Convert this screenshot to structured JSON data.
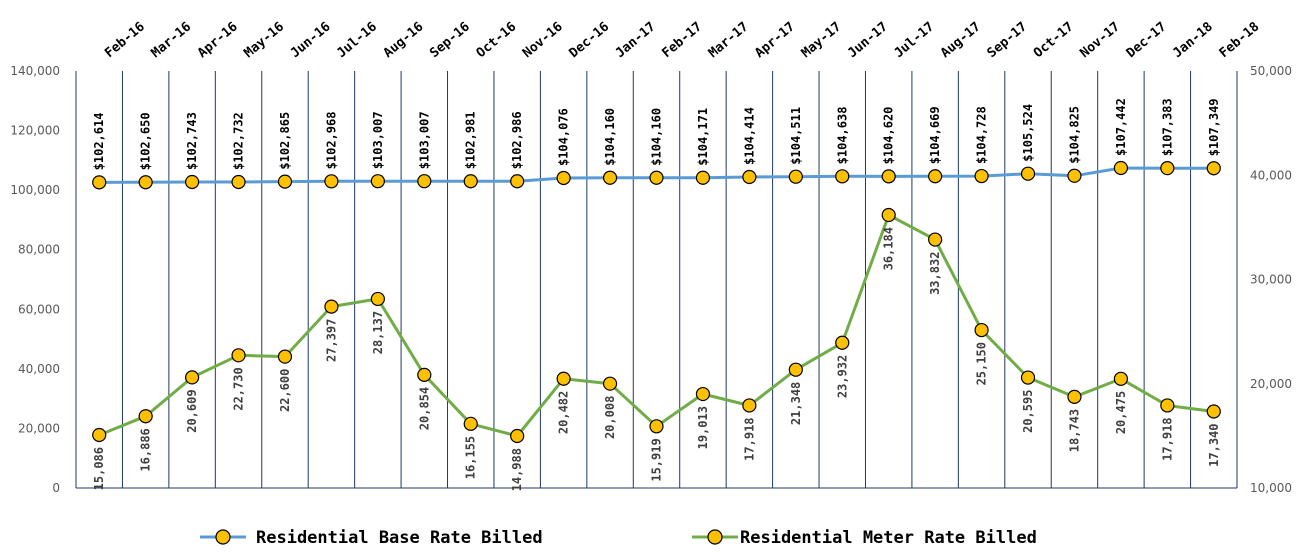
{
  "chart_data": {
    "type": "line",
    "categories": [
      "Feb-16",
      "Mar-16",
      "Apr-16",
      "May-16",
      "Jun-16",
      "Jul-16",
      "Aug-16",
      "Sep-16",
      "Oct-16",
      "Nov-16",
      "Dec-16",
      "Jan-17",
      "Feb-17",
      "Mar-17",
      "Apr-17",
      "May-17",
      "Jun-17",
      "Jul-17",
      "Aug-17",
      "Sep-17",
      "Oct-17",
      "Nov-17",
      "Dec-17",
      "Jan-18",
      "Feb-18"
    ],
    "y_left": {
      "min": 0,
      "max": 140000,
      "ticks": [
        "0",
        "20,000",
        "40,000",
        "60,000",
        "80,000",
        "100,000",
        "120,000",
        "140,000"
      ]
    },
    "y_right": {
      "min": 10000,
      "max": 50000,
      "ticks": [
        "10,000",
        "20,000",
        "30,000",
        "40,000",
        "50,000"
      ]
    },
    "series": [
      {
        "name": "Residential Base Rate Billed",
        "axis": "left",
        "color": "#5B9BD5",
        "marker_color": "#FFC000",
        "values": [
          102614,
          102650,
          102743,
          102732,
          102865,
          102968,
          103007,
          103007,
          102981,
          102986,
          104076,
          104160,
          104160,
          104171,
          104414,
          104511,
          104638,
          104620,
          104669,
          104728,
          105524,
          104825,
          107442,
          107383,
          107349
        ],
        "labels": [
          "$102,614",
          "$102,650",
          "$102,743",
          "$102,732",
          "$102,865",
          "$102,968",
          "$103,007",
          "$103,007",
          "$102,981",
          "$102,986",
          "$104,076",
          "$104,160",
          "$104,160",
          "$104,171",
          "$104,414",
          "$104,511",
          "$104,638",
          "$104,620",
          "$104,669",
          "$104,728",
          "$105,524",
          "$104,825",
          "$107,442",
          "$107,383",
          "$107,349"
        ]
      },
      {
        "name": "Residential Meter Rate Billed",
        "axis": "right",
        "color": "#70AD47",
        "marker_color": "#FFC000",
        "values": [
          15086,
          16886,
          20609,
          22730,
          22600,
          27397,
          28137,
          20854,
          16155,
          14988,
          20482,
          20008,
          15919,
          19013,
          17918,
          21348,
          23932,
          36184,
          33832,
          25150,
          20595,
          18743,
          20475,
          17918,
          17340
        ],
        "labels": [
          "15,086",
          "16,886",
          "20,609",
          "22,730",
          "22,600",
          "27,397",
          "28,137",
          "20,854",
          "16,155",
          "14,988",
          "20,482",
          "20,008",
          "15,919",
          "19,013",
          "17,918",
          "21,348",
          "23,932",
          "36,184",
          "33,832",
          "25,150",
          "20,595",
          "18,743",
          "20,475",
          "17,918",
          "17,340"
        ]
      }
    ],
    "grid": "vertical lines between categories",
    "legend_position": "bottom"
  }
}
